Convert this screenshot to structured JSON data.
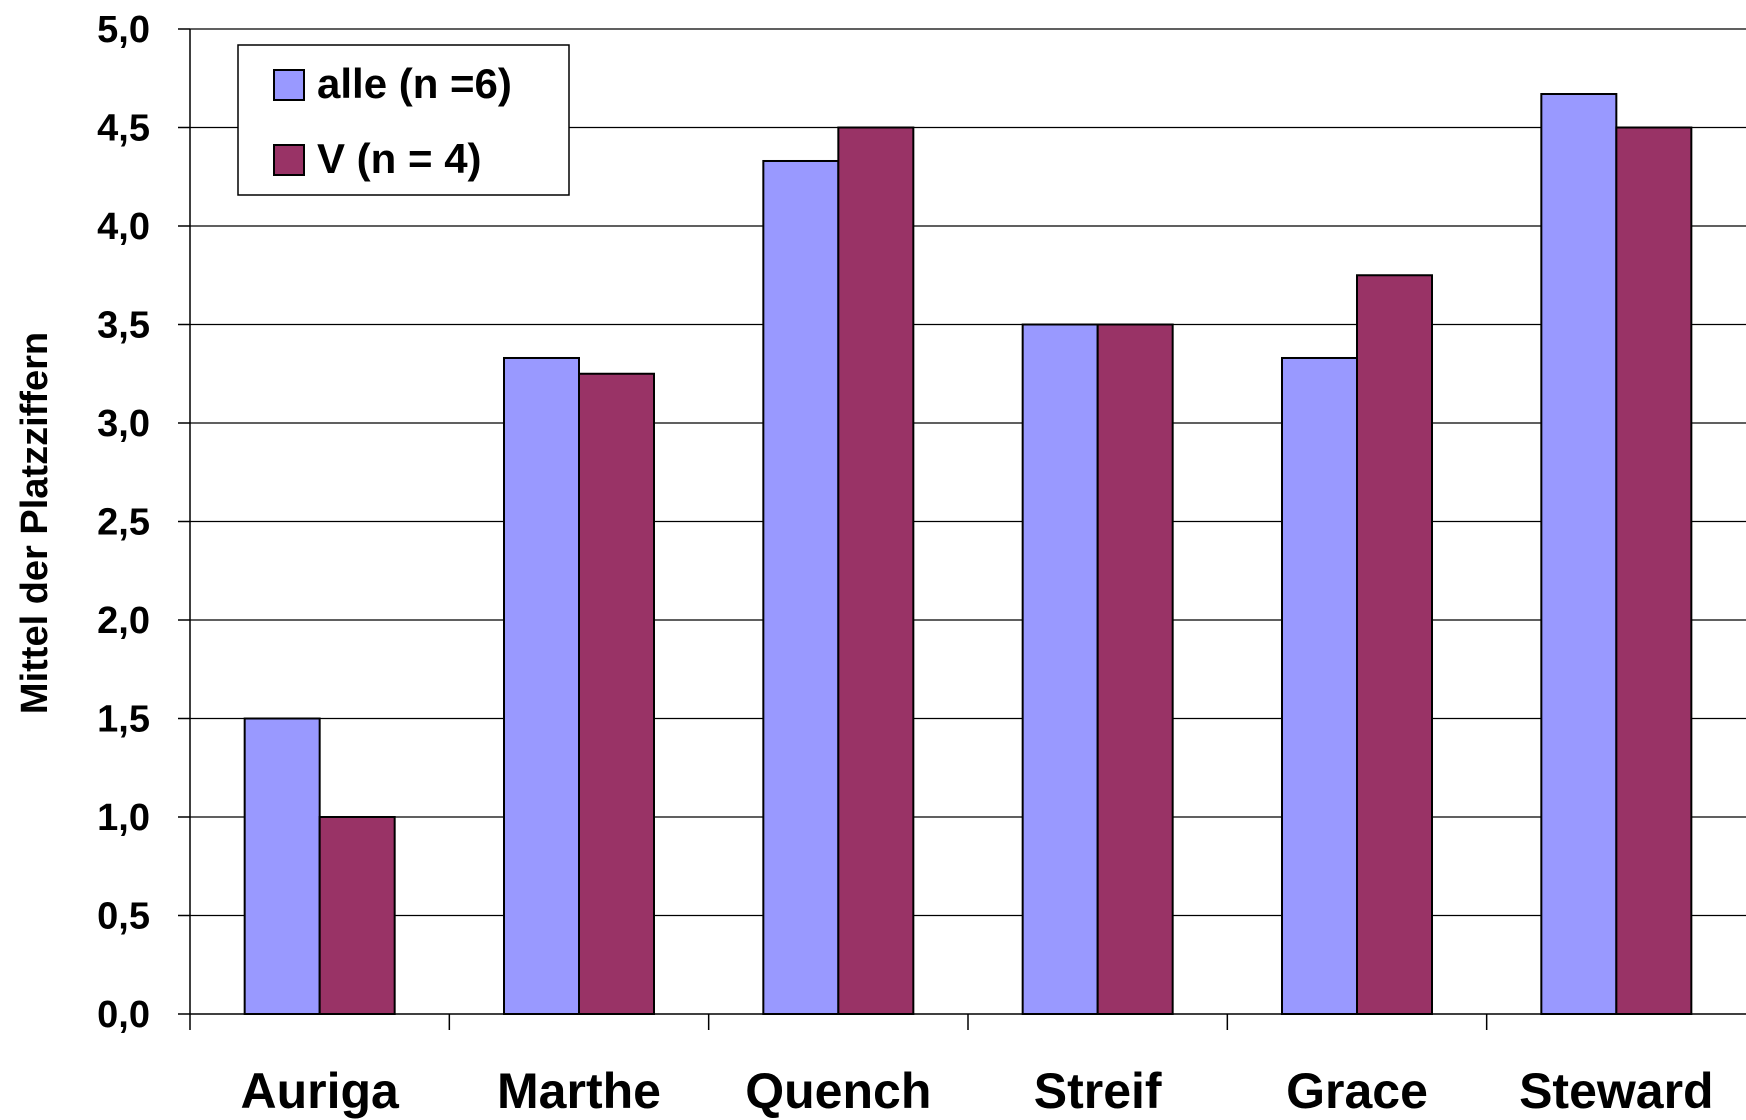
{
  "chart_data": {
    "type": "bar",
    "ylabel": "Mittel der Platzziffern",
    "ylim": [
      0,
      5
    ],
    "ytick_step": 0.5,
    "ytick_labels": [
      "0,0",
      "0,5",
      "1,0",
      "1,5",
      "2,0",
      "2,5",
      "3,0",
      "3,5",
      "4,0",
      "4,5",
      "5,0"
    ],
    "grid": true,
    "legend_position": "top-left",
    "categories": [
      "Auriga",
      "Marthe",
      "Quench",
      "Streif",
      "Grace",
      "Steward"
    ],
    "series": [
      {
        "name": "alle (n =6)",
        "color": "#9999ff",
        "values": [
          1.5,
          3.33,
          4.33,
          3.5,
          3.33,
          4.67
        ]
      },
      {
        "name": "V (n = 4)",
        "color": "#993366",
        "values": [
          1.0,
          3.25,
          4.5,
          3.5,
          3.75,
          4.5
        ]
      }
    ]
  }
}
